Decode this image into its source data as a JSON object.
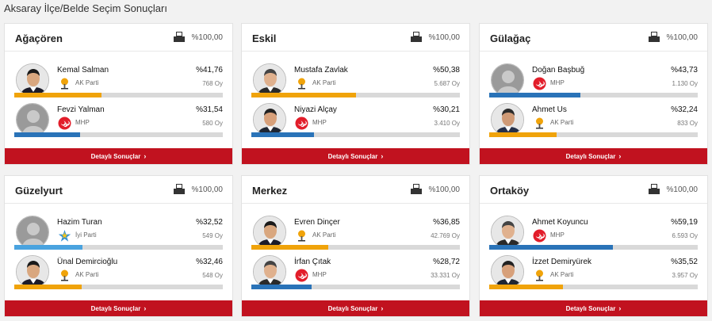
{
  "page_title": "Aksaray İlçe/Belde Seçim Sonuçları",
  "detail_label": "Detaylı Sonuçlar",
  "chevron": "›",
  "colors": {
    "ak_parti": "#f0a30a",
    "mhp": "#2a73b8",
    "iyi_parti": "#4aa3df",
    "button": "#c1121f"
  },
  "districts": [
    {
      "name": "Ağaçören",
      "counted": "%100,00",
      "candidates": [
        {
          "name": "Kemal Salman",
          "party": "AK Parti",
          "party_key": "akp",
          "pct_label": "%41,76",
          "pct": 41.76,
          "votes": "768 Oy",
          "photo": "photo"
        },
        {
          "name": "Fevzi Yalman",
          "party": "MHP",
          "party_key": "mhp",
          "pct_label": "%31,54",
          "pct": 31.54,
          "votes": "580 Oy",
          "photo": "placeholder"
        }
      ]
    },
    {
      "name": "Eskil",
      "counted": "%100,00",
      "candidates": [
        {
          "name": "Mustafa Zavlak",
          "party": "AK Parti",
          "party_key": "akp",
          "pct_label": "%50,38",
          "pct": 50.38,
          "votes": "5.687 Oy",
          "photo": "photo"
        },
        {
          "name": "Niyazi Alçay",
          "party": "MHP",
          "party_key": "mhp",
          "pct_label": "%30,21",
          "pct": 30.21,
          "votes": "3.410 Oy",
          "photo": "photo"
        }
      ]
    },
    {
      "name": "Gülağaç",
      "counted": "%100,00",
      "candidates": [
        {
          "name": "Doğan Başbuğ",
          "party": "MHP",
          "party_key": "mhp",
          "pct_label": "%43,73",
          "pct": 43.73,
          "votes": "1.130 Oy",
          "photo": "placeholder"
        },
        {
          "name": "Ahmet Us",
          "party": "AK Parti",
          "party_key": "akp",
          "pct_label": "%32,24",
          "pct": 32.24,
          "votes": "833 Oy",
          "photo": "photo"
        }
      ]
    },
    {
      "name": "Güzelyurt",
      "counted": "%100,00",
      "candidates": [
        {
          "name": "Hazim Turan",
          "party": "İyi Parti",
          "party_key": "iyi",
          "pct_label": "%32,52",
          "pct": 32.52,
          "votes": "549 Oy",
          "photo": "placeholder"
        },
        {
          "name": "Ünal Demircioğlu",
          "party": "AK Parti",
          "party_key": "akp",
          "pct_label": "%32,46",
          "pct": 32.46,
          "votes": "548 Oy",
          "photo": "photo"
        }
      ]
    },
    {
      "name": "Merkez",
      "counted": "%100,00",
      "candidates": [
        {
          "name": "Evren Dinçer",
          "party": "AK Parti",
          "party_key": "akp",
          "pct_label": "%36,85",
          "pct": 36.85,
          "votes": "42.769 Oy",
          "photo": "photo"
        },
        {
          "name": "İrfan Çıtak",
          "party": "MHP",
          "party_key": "mhp",
          "pct_label": "%28,72",
          "pct": 28.72,
          "votes": "33.331 Oy",
          "photo": "photo"
        }
      ]
    },
    {
      "name": "Ortaköy",
      "counted": "%100,00",
      "candidates": [
        {
          "name": "Ahmet Koyuncu",
          "party": "MHP",
          "party_key": "mhp",
          "pct_label": "%59,19",
          "pct": 59.19,
          "votes": "6.593 Oy",
          "photo": "photo"
        },
        {
          "name": "İzzet Demiryürek",
          "party": "AK Parti",
          "party_key": "akp",
          "pct_label": "%35,52",
          "pct": 35.52,
          "votes": "3.957 Oy",
          "photo": "photo"
        }
      ]
    }
  ]
}
